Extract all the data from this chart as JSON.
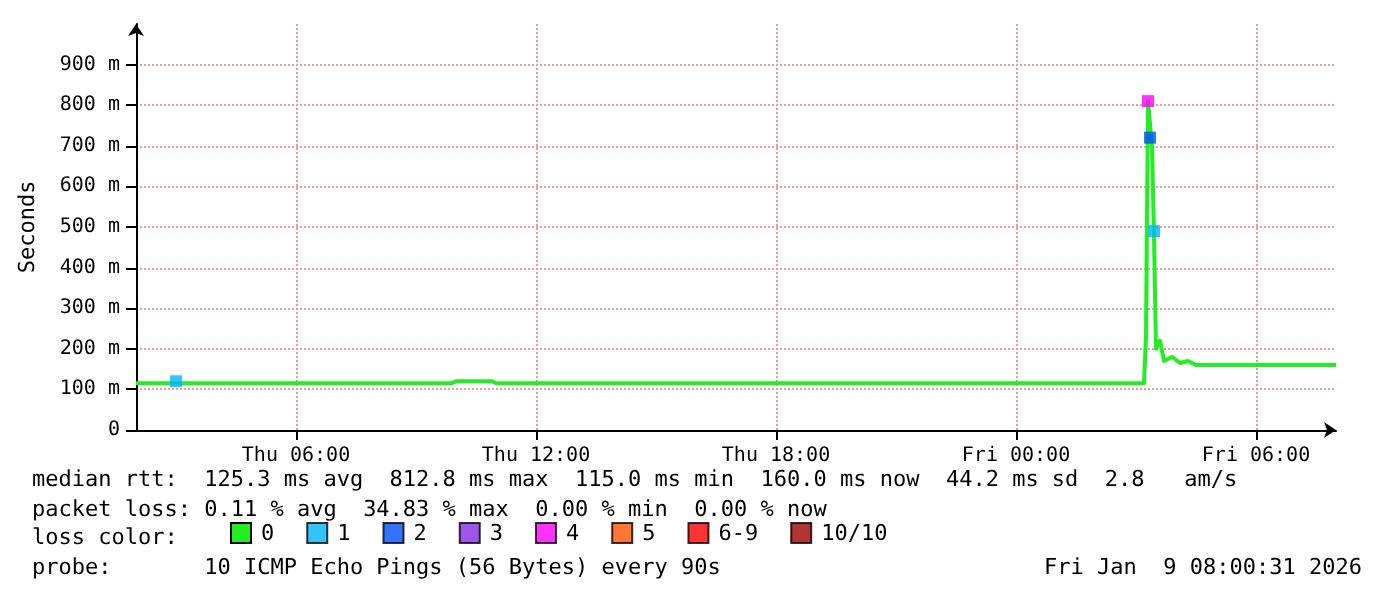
{
  "chart_data": {
    "type": "line",
    "ylabel": "Seconds",
    "legend_title": "loss color:",
    "xlim": [
      "2026-01-08T02:00",
      "2026-01-09T08:00"
    ],
    "xticks": [
      {
        "value": "2026-01-08T06:00",
        "label": "Thu 06:00"
      },
      {
        "value": "2026-01-08T12:00",
        "label": "Thu 12:00"
      },
      {
        "value": "2026-01-08T18:00",
        "label": "Thu 18:00"
      },
      {
        "value": "2026-01-09T00:00",
        "label": "Fri 00:00"
      },
      {
        "value": "2026-01-09T06:00",
        "label": "Fri 06:00"
      }
    ],
    "ylim": [
      0,
      1000
    ],
    "yticks": [
      0,
      {
        "value": 100,
        "label": "100 m"
      },
      {
        "value": 200,
        "label": "200 m"
      },
      {
        "value": 300,
        "label": "300 m"
      },
      {
        "value": 400,
        "label": "400 m"
      },
      {
        "value": 500,
        "label": "500 m"
      },
      {
        "value": 600,
        "label": "600 m"
      },
      {
        "value": 700,
        "label": "700 m"
      },
      {
        "value": 800,
        "label": "800 m"
      },
      {
        "value": 900,
        "label": "900 m"
      }
    ],
    "grid": true,
    "legend": "bottom",
    "series": [
      {
        "name": "0",
        "color": "#22ee22",
        "x": [
          "2026-01-08T02:00",
          "2026-01-08T03:00",
          "2026-01-08T06:00",
          "2026-01-08T09:54",
          "2026-01-08T10:00",
          "2026-01-08T10:54",
          "2026-01-08T11:00",
          "2026-01-08T16:00",
          "2026-01-08T22:00",
          "2026-01-09T03:12",
          "2026-01-09T03:15",
          "2026-01-09T03:18",
          "2026-01-09T03:24",
          "2026-01-09T03:27",
          "2026-01-09T03:30",
          "2026-01-09T03:36",
          "2026-01-09T03:42",
          "2026-01-09T03:54",
          "2026-01-09T04:06",
          "2026-01-09T04:18",
          "2026-01-09T04:30",
          "2026-01-09T06:00",
          "2026-01-09T08:00"
        ],
        "values": [
          115,
          115,
          115,
          115,
          120,
          120,
          115,
          115,
          115,
          115,
          230,
          810,
          700,
          480,
          200,
          220,
          170,
          180,
          165,
          170,
          160,
          160,
          160
        ]
      },
      {
        "name": "1",
        "color": "#00b4ff",
        "type": "scatter",
        "marker": "square",
        "x": [
          "2026-01-08T03:00",
          "2026-01-09T03:27"
        ],
        "values": [
          120,
          490
        ]
      },
      {
        "name": "2",
        "color": "#0050ff",
        "type": "scatter",
        "marker": "square",
        "x": [
          "2026-01-09T03:21"
        ],
        "values": [
          720
        ]
      },
      {
        "name": "3",
        "color": "#8a2be2",
        "type": "scatter"
      },
      {
        "name": "4",
        "color": "#ff00ff",
        "type": "scatter",
        "marker": "square",
        "x": [
          "2026-01-09T03:18"
        ],
        "values": [
          810
        ]
      },
      {
        "name": "5",
        "color": "#ff5500",
        "type": "scatter"
      },
      {
        "name": "6-9",
        "color": "#ff0000",
        "type": "scatter"
      },
      {
        "name": "10/10",
        "color": "#a10000",
        "type": "scatter"
      }
    ],
    "annotations": [
      "median rtt:  125.3 ms avg  812.8 ms max  115.0 ms min  160.0 ms now  44.2 ms sd  2.8   am/s",
      "packet loss: 0.11 % avg  34.83 % max  0.00 % min  0.00 % now",
      "probe:       10 ICMP Echo Pings (56 Bytes) every 90s",
      "Fri Jan  9 08:00:31 2026"
    ]
  }
}
